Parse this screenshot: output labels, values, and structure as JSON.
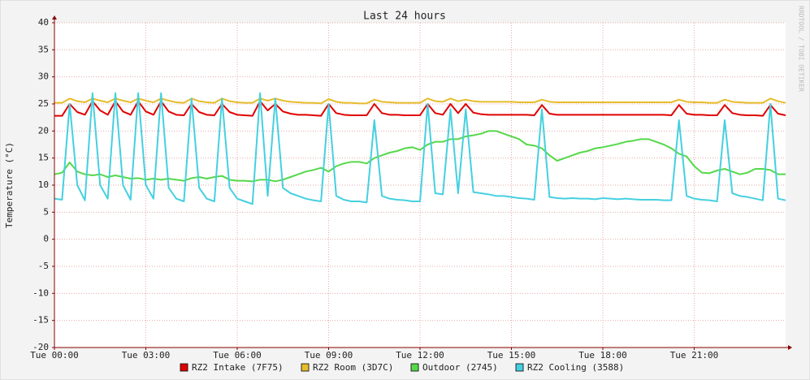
{
  "chart_data": {
    "type": "line",
    "title": "Last 24 hours",
    "y_label": "Temperature (°C)",
    "watermark": "RRDTOOL / TOBI OETIKER",
    "grid": true,
    "legend": "bottom",
    "xlim": [
      0,
      24
    ],
    "xticks": [
      {
        "value": 0,
        "label": "Tue 00:00"
      },
      {
        "value": 3,
        "label": "Tue 03:00"
      },
      {
        "value": 6,
        "label": "Tue 06:00"
      },
      {
        "value": 9,
        "label": "Tue 09:00"
      },
      {
        "value": 12,
        "label": "Tue 12:00"
      },
      {
        "value": 15,
        "label": "Tue 15:00"
      },
      {
        "value": 18,
        "label": "Tue 18:00"
      },
      {
        "value": 21,
        "label": "Tue 21:00"
      }
    ],
    "ylim": [
      -20,
      40
    ],
    "yticks": [
      -20,
      -15,
      -10,
      -5,
      0,
      5,
      10,
      15,
      20,
      25,
      30,
      35,
      40
    ],
    "x": [
      0,
      0.25,
      0.5,
      0.75,
      1,
      1.25,
      1.5,
      1.75,
      2,
      2.25,
      2.5,
      2.75,
      3,
      3.25,
      3.5,
      3.75,
      4,
      4.25,
      4.5,
      4.75,
      5,
      5.25,
      5.5,
      5.75,
      6,
      6.25,
      6.5,
      6.75,
      7,
      7.25,
      7.5,
      7.75,
      8,
      8.25,
      8.5,
      8.75,
      9,
      9.25,
      9.5,
      9.75,
      10,
      10.25,
      10.5,
      10.75,
      11,
      11.25,
      11.5,
      11.75,
      12,
      12.25,
      12.5,
      12.75,
      13,
      13.25,
      13.5,
      13.75,
      14,
      14.25,
      14.5,
      14.75,
      15,
      15.25,
      15.5,
      15.75,
      16,
      16.25,
      16.5,
      16.75,
      17,
      17.25,
      17.5,
      17.75,
      18,
      18.25,
      18.5,
      18.75,
      19,
      19.25,
      19.5,
      19.75,
      20,
      20.25,
      20.5,
      20.75,
      21,
      21.25,
      21.5,
      21.75,
      22,
      22.25,
      22.5,
      22.75,
      23,
      23.25,
      23.5,
      23.75,
      24
    ],
    "series": [
      {
        "name": "RZ2 Intake (7F75)",
        "color": "#e00000",
        "values": [
          22.8,
          22.8,
          25,
          23.5,
          23,
          25.5,
          23.8,
          23,
          25.5,
          23.6,
          23,
          25.5,
          23.6,
          23,
          25.5,
          23.6,
          23,
          22.9,
          25,
          23.5,
          23,
          22.9,
          25,
          23.5,
          23,
          22.9,
          22.8,
          25.5,
          23.8,
          25,
          23.6,
          23.2,
          23,
          23,
          22.9,
          22.8,
          25,
          23.3,
          23,
          22.9,
          22.9,
          22.9,
          25,
          23.3,
          23,
          23,
          22.9,
          22.9,
          22.9,
          25,
          23.3,
          23,
          25,
          23.3,
          25,
          23.4,
          23.1,
          23,
          23,
          23,
          23,
          23,
          23,
          22.9,
          24.8,
          23.2,
          23,
          23,
          23,
          23,
          23,
          23,
          23,
          23,
          23,
          23,
          23,
          23,
          23,
          23,
          23,
          22.9,
          24.8,
          23.2,
          23,
          23,
          22.9,
          22.9,
          24.8,
          23.3,
          23,
          22.9,
          22.9,
          22.8,
          24.8,
          23.2,
          22.9
        ]
      },
      {
        "name": "RZ2 Room (3D7C)",
        "color": "#e6bd2c",
        "values": [
          25.2,
          25.2,
          26,
          25.5,
          25.3,
          26,
          25.6,
          25.3,
          26,
          25.6,
          25.3,
          26,
          25.6,
          25.3,
          26,
          25.6,
          25.3,
          25.2,
          26,
          25.5,
          25.3,
          25.2,
          26,
          25.5,
          25.3,
          25.2,
          25.2,
          26,
          25.6,
          26,
          25.6,
          25.4,
          25.3,
          25.2,
          25.2,
          25.1,
          25.9,
          25.4,
          25.2,
          25.2,
          25.1,
          25.1,
          25.8,
          25.4,
          25.3,
          25.2,
          25.2,
          25.2,
          25.2,
          26,
          25.5,
          25.4,
          26,
          25.5,
          25.8,
          25.5,
          25.4,
          25.4,
          25.4,
          25.4,
          25.4,
          25.3,
          25.3,
          25.3,
          25.8,
          25.4,
          25.3,
          25.3,
          25.3,
          25.3,
          25.3,
          25.3,
          25.3,
          25.3,
          25.3,
          25.3,
          25.3,
          25.3,
          25.3,
          25.3,
          25.3,
          25.3,
          25.8,
          25.4,
          25.3,
          25.3,
          25.2,
          25.2,
          25.8,
          25.4,
          25.3,
          25.2,
          25.2,
          25.2,
          26,
          25.5,
          25.2
        ]
      },
      {
        "name": "Outdoor (2745)",
        "color": "#55d84a",
        "values": [
          12,
          12.3,
          14.2,
          12.5,
          12,
          11.8,
          12,
          11.5,
          11.8,
          11.5,
          11.2,
          11.3,
          11,
          11.2,
          11,
          11.2,
          11,
          10.8,
          11.3,
          11.5,
          11.2,
          11.5,
          11.7,
          11,
          10.8,
          10.8,
          10.7,
          11,
          11,
          10.7,
          11,
          11.5,
          12,
          12.5,
          12.8,
          13.2,
          12.5,
          13.5,
          14,
          14.3,
          14.3,
          14,
          15,
          15.5,
          16,
          16.3,
          16.8,
          17,
          16.5,
          17.5,
          18,
          18,
          18.5,
          18.5,
          19,
          19.2,
          19.5,
          20,
          20,
          19.5,
          19,
          18.5,
          17.5,
          17.3,
          16.8,
          15.5,
          14.5,
          15,
          15.5,
          16,
          16.3,
          16.8,
          17,
          17.3,
          17.6,
          18,
          18.2,
          18.5,
          18.5,
          18,
          17.5,
          16.8,
          15.8,
          15.3,
          13.5,
          12.3,
          12.2,
          12.7,
          13,
          12.5,
          12,
          12.3,
          13,
          13,
          12.8,
          12,
          12
        ]
      },
      {
        "name": "RZ2 Cooling (3588)",
        "color": "#45d0e0",
        "values": [
          7.5,
          7.3,
          25,
          10,
          7.2,
          27,
          10,
          7.5,
          27,
          10,
          7.3,
          27,
          10,
          7.5,
          27,
          9.5,
          7.5,
          7,
          26,
          9.5,
          7.5,
          7,
          26,
          9.5,
          7.5,
          7,
          6.5,
          27,
          8,
          26,
          9.5,
          8.5,
          8,
          7.5,
          7.2,
          7,
          25,
          8,
          7.3,
          7,
          7,
          6.8,
          22,
          8,
          7.5,
          7.3,
          7.2,
          7,
          7,
          25,
          8.5,
          8.3,
          24,
          8.5,
          24,
          8.7,
          8.5,
          8.3,
          8,
          8,
          7.8,
          7.6,
          7.5,
          7.3,
          24,
          7.8,
          7.6,
          7.5,
          7.6,
          7.5,
          7.5,
          7.4,
          7.6,
          7.5,
          7.4,
          7.5,
          7.4,
          7.3,
          7.3,
          7.3,
          7.2,
          7.2,
          22,
          8,
          7.5,
          7.3,
          7.2,
          7,
          22,
          8.5,
          8,
          7.8,
          7.5,
          7.2,
          25,
          7.5,
          7.2
        ]
      }
    ]
  }
}
